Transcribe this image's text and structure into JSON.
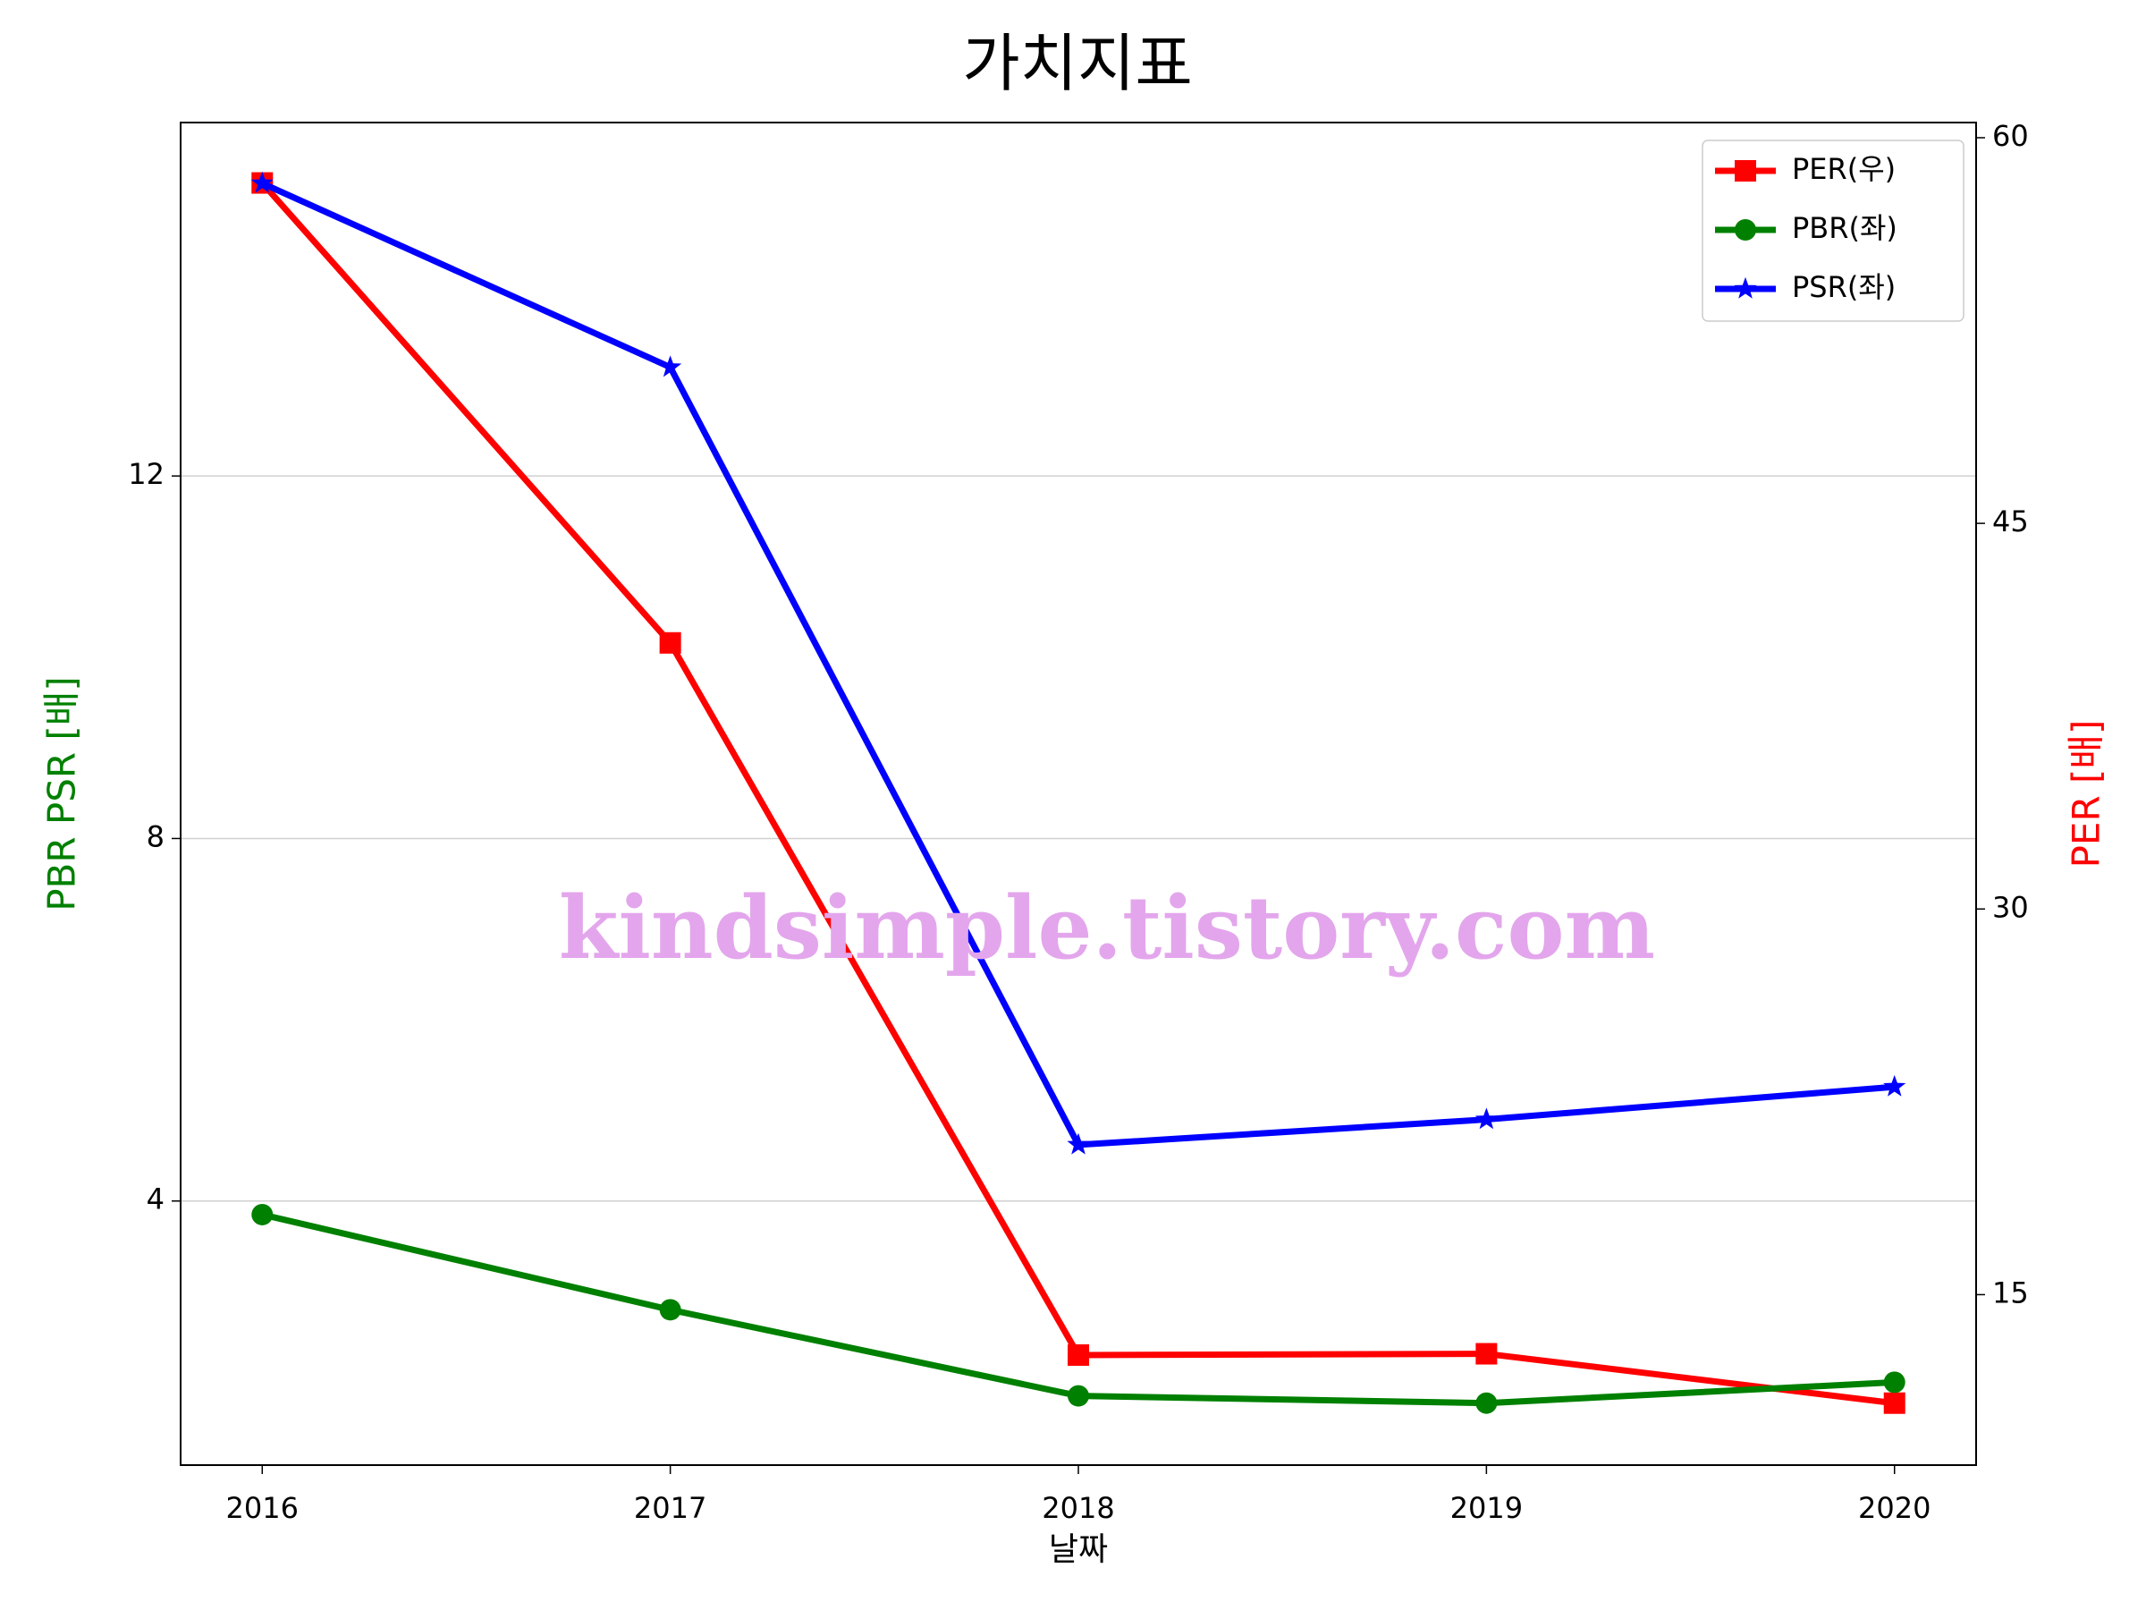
{
  "chart_data": {
    "type": "line",
    "title": "가치지표",
    "x": [
      2016,
      2017,
      2018,
      2019,
      2020
    ],
    "xlim": [
      2015.8,
      2020.2
    ],
    "xticks": [
      2016,
      2017,
      2018,
      2019,
      2020
    ],
    "xlabel": "날짜",
    "ylim": [
      1.086,
      15.9
    ],
    "yticks": [
      4,
      8,
      12
    ],
    "ylabel": "PBR PSR [배]",
    "ylabel_color": "green",
    "y2lim": [
      8.37,
      60.59
    ],
    "y2ticks": [
      15,
      30,
      45,
      60
    ],
    "y2label": "PER [배]",
    "y2label_color": "red",
    "grid": true,
    "legend": "upper right",
    "series": [
      {
        "name": "PER(우)",
        "color": "red",
        "marker": "square",
        "axis": "y2",
        "values": [
          58.24,
          40.35,
          12.65,
          12.7,
          10.78
        ]
      },
      {
        "name": "PBR(좌)",
        "color": "green",
        "marker": "circle",
        "values": [
          3.85,
          2.8,
          1.85,
          1.77,
          2.0
        ]
      },
      {
        "name": "PSR(좌)",
        "color": "blue",
        "marker": "star",
        "values": [
          15.23,
          13.2,
          4.62,
          4.9,
          5.26
        ]
      }
    ],
    "watermark": {
      "text": "kindsimple.tistory.com",
      "color": "#e3a6ec"
    }
  }
}
